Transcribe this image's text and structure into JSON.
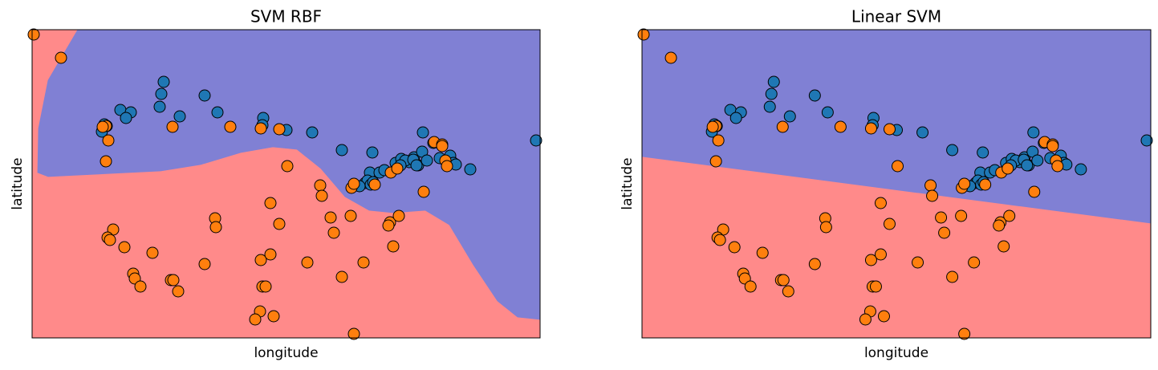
{
  "chart_data": [
    {
      "type": "scatter",
      "title": "SVM RBF",
      "xlabel": "longitude",
      "ylabel": "latitude",
      "xlim": [
        0,
        633
      ],
      "ylim": [
        0,
        384
      ],
      "region_colors": {
        "upper": "#8080d4",
        "lower": "#ff8a8a"
      },
      "decision_boundary": {
        "x": [
          57,
          20,
          8,
          7,
          20,
          60,
          160,
          210,
          260,
          300,
          330,
          360,
          390,
          420,
          450,
          490,
          520,
          550,
          580,
          605,
          633
        ],
        "y": [
          384,
          321,
          261,
          206,
          201,
          203,
          208,
          216,
          231,
          238,
          235,
          211,
          176,
          159,
          156,
          159,
          141,
          91,
          46,
          26,
          23
        ]
      },
      "series": [
        {
          "color": "#1f77b4",
          "x": [
            164,
            161,
            159,
            110,
            123,
            117,
            215,
            231,
            288,
            287,
            317,
            349,
            184,
            90,
            93,
            87,
            386,
            424,
            487,
            500,
            628,
            546,
            453,
            460,
            470,
            476,
            481,
            486,
            492,
            508,
            521,
            525,
            528,
            421,
            433,
            439,
            415,
            418,
            422,
            425,
            408,
            465,
            475,
            479,
            459
          ],
          "values": [
            319,
            304,
            288,
            284,
            281,
            274,
            302,
            281,
            274,
            265,
            259,
            256,
            276,
            266,
            264,
            257,
            234,
            231,
            256,
            243,
            246,
            210,
            218,
            223,
            219,
            225,
            215,
            232,
            221,
            224,
            227,
            218,
            216,
            206,
            206,
            209,
            193,
            196,
            191,
            194,
            189,
            221,
            222,
            215,
            215
          ]
        },
        {
          "color": "#ff7f0e",
          "x": [
            2,
            36,
            95,
            92,
            88,
            175,
            247,
            285,
            308,
            92,
            318,
            359,
            361,
            398,
            401,
            427,
            447,
            455,
            501,
            511,
            515,
            517,
            488,
            297,
            228,
            229,
            308,
            372,
            376,
            397,
            446,
            444,
            457,
            101,
            94,
            97,
            115,
            150,
            215,
            285,
            297,
            343,
            413,
            450,
            126,
            128,
            135,
            173,
            176,
            182,
            287,
            291,
            386,
            284,
            278,
            301,
            401,
            511
          ],
          "values": [
            378,
            349,
            246,
            264,
            263,
            263,
            263,
            261,
            260,
            220,
            214,
            190,
            177,
            187,
            192,
            191,
            206,
            211,
            244,
            241,
            221,
            214,
            182,
            168,
            149,
            138,
            142,
            150,
            131,
            152,
            144,
            140,
            152,
            135,
            125,
            122,
            113,
            106,
            92,
            97,
            104,
            94,
            94,
            114,
            80,
            74,
            64,
            72,
            72,
            58,
            64,
            64,
            76,
            33,
            23,
            27,
            5,
            239
          ]
        }
      ]
    },
    {
      "type": "scatter",
      "title": "Linear SVM",
      "xlabel": "longitude",
      "ylabel": "latitude",
      "xlim": [
        0,
        633
      ],
      "ylim": [
        0,
        384
      ],
      "region_colors": {
        "upper": "#8080d4",
        "lower": "#ff8a8a"
      },
      "decision_boundary": {
        "x": [
          0,
          633
        ],
        "y": [
          226,
          143
        ]
      },
      "series": [
        {
          "color": "#1f77b4",
          "x": [
            164,
            161,
            159,
            110,
            123,
            117,
            215,
            231,
            288,
            287,
            317,
            349,
            184,
            90,
            93,
            87,
            386,
            424,
            487,
            500,
            628,
            546,
            453,
            460,
            470,
            476,
            481,
            486,
            492,
            508,
            521,
            525,
            528,
            421,
            433,
            439,
            415,
            418,
            422,
            425,
            408,
            465,
            475,
            479,
            459
          ],
          "values": [
            319,
            304,
            288,
            284,
            281,
            274,
            302,
            281,
            274,
            265,
            259,
            256,
            276,
            266,
            264,
            257,
            234,
            231,
            256,
            243,
            246,
            210,
            218,
            223,
            219,
            225,
            215,
            232,
            221,
            224,
            227,
            218,
            216,
            206,
            206,
            209,
            193,
            196,
            191,
            194,
            189,
            221,
            222,
            215,
            215
          ]
        },
        {
          "color": "#ff7f0e",
          "x": [
            2,
            36,
            95,
            92,
            88,
            175,
            247,
            285,
            308,
            92,
            318,
            359,
            361,
            398,
            401,
            427,
            447,
            455,
            501,
            511,
            515,
            517,
            488,
            297,
            228,
            229,
            308,
            372,
            376,
            397,
            446,
            444,
            457,
            101,
            94,
            97,
            115,
            150,
            215,
            285,
            297,
            343,
            413,
            450,
            126,
            128,
            135,
            173,
            176,
            182,
            287,
            291,
            386,
            284,
            278,
            301,
            401,
            511
          ],
          "values": [
            378,
            349,
            246,
            264,
            263,
            263,
            263,
            261,
            260,
            220,
            214,
            190,
            177,
            187,
            192,
            191,
            206,
            211,
            244,
            241,
            221,
            214,
            182,
            168,
            149,
            138,
            142,
            150,
            131,
            152,
            144,
            140,
            152,
            135,
            125,
            122,
            113,
            106,
            92,
            97,
            104,
            94,
            94,
            114,
            80,
            74,
            64,
            72,
            72,
            58,
            64,
            64,
            76,
            33,
            23,
            27,
            5,
            239
          ]
        }
      ]
    }
  ]
}
